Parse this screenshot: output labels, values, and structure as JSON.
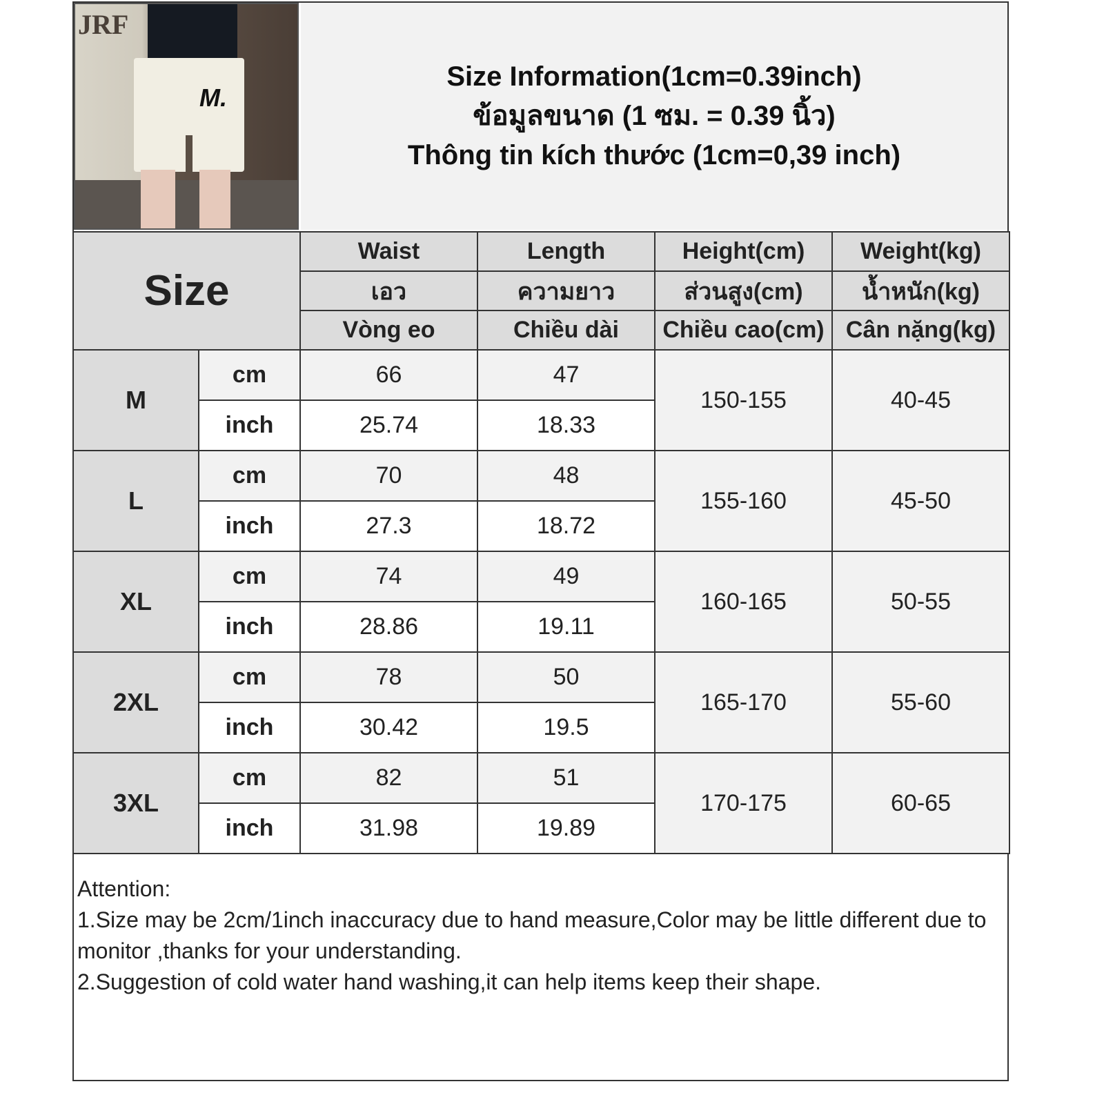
{
  "title": {
    "line1": "Size Information(1cm=0.39inch)",
    "line2": "ข้อมูลขนาด (1 ซม. = 0.39 นิ้ว)",
    "line3": "Thông tin kích thước (1cm=0,39 inch)"
  },
  "photo": {
    "brand_text": "JRF",
    "logo_text": "M."
  },
  "table": {
    "size_label": "Size",
    "columns": [
      {
        "en": "Waist",
        "th": "เอว",
        "vi": "Vòng eo"
      },
      {
        "en": "Length",
        "th": "ความยาว",
        "vi": "Chiều dài"
      },
      {
        "en": "Height(cm)",
        "th": "ส่วนสูง(cm)",
        "vi": "Chiều cao(cm)"
      },
      {
        "en": "Weight(kg)",
        "th": "น้ำหนัก(kg)",
        "vi": "Cân nặng(kg)"
      }
    ],
    "unit_cm": "cm",
    "unit_inch": "inch",
    "rows": [
      {
        "size": "M",
        "waist_cm": "66",
        "length_cm": "47",
        "waist_inch": "25.74",
        "length_inch": "18.33",
        "height": "150-155",
        "weight": "40-45"
      },
      {
        "size": "L",
        "waist_cm": "70",
        "length_cm": "48",
        "waist_inch": "27.3",
        "length_inch": "18.72",
        "height": "155-160",
        "weight": "45-50"
      },
      {
        "size": "XL",
        "waist_cm": "74",
        "length_cm": "49",
        "waist_inch": "28.86",
        "length_inch": "19.11",
        "height": "160-165",
        "weight": "50-55"
      },
      {
        "size": "2XL",
        "waist_cm": "78",
        "length_cm": "50",
        "waist_inch": "30.42",
        "length_inch": "19.5",
        "height": "165-170",
        "weight": "55-60"
      },
      {
        "size": "3XL",
        "waist_cm": "82",
        "length_cm": "51",
        "waist_inch": "31.98",
        "length_inch": "19.89",
        "height": "170-175",
        "weight": "60-65"
      }
    ]
  },
  "notes": {
    "heading": "Attention:",
    "items": [
      "1.Size may be 2cm/1inch inaccuracy due to hand measure,Color may be little different due to monitor ,thanks for your understanding.",
      "2.Suggestion of cold water hand washing,it can help items keep their shape."
    ]
  }
}
